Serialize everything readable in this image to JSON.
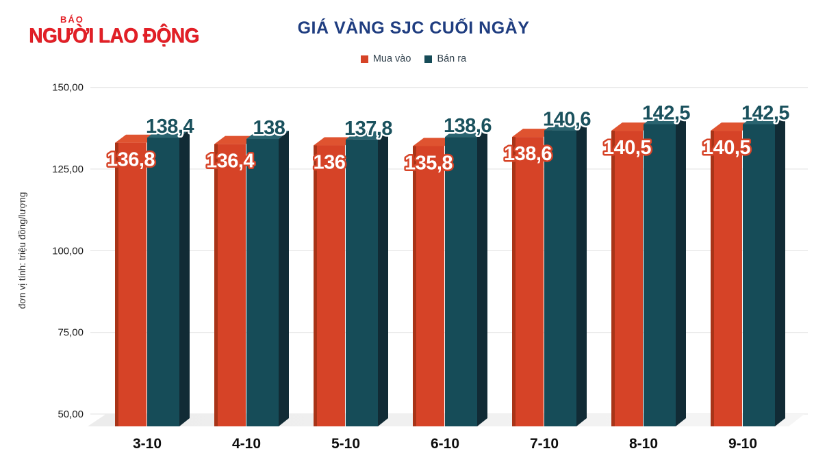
{
  "logo": {
    "top_text": "BÁO",
    "main_text": "NGƯỜI LAO ĐỘNG",
    "color": "#E31F26"
  },
  "header": {
    "title": "GIÁ VÀNG SJC CUỐI NGÀY",
    "title_color": "#1F3D80"
  },
  "legend": [
    {
      "label": "Mua vào",
      "color": "#D64327"
    },
    {
      "label": "Bán ra",
      "color": "#164C58"
    }
  ],
  "y_axis": {
    "title": "đơn vị tính: triệu đồng/lượng",
    "ticks": [
      "150,00",
      "125,00",
      "100,00",
      "75,00",
      "50,00"
    ],
    "tick_values": [
      150,
      125,
      100,
      75,
      50
    ]
  },
  "chart_data": {
    "type": "bar",
    "title": "GIÁ VÀNG SJC CUỐI NGÀY",
    "categories": [
      "3-10",
      "4-10",
      "5-10",
      "6-10",
      "7-10",
      "8-10",
      "9-10"
    ],
    "series": [
      {
        "name": "Mua vào",
        "color": "#D64327",
        "top_color": "#DF5330",
        "edge_color": "#A83418",
        "label_fill": "#FFFFFF",
        "label_stroke": "#D64327",
        "values": [
          136.8,
          136.4,
          136.0,
          135.8,
          138.6,
          140.5,
          140.5
        ],
        "labels": [
          "136,8",
          "136,4",
          "136",
          "135,8",
          "138,6",
          "140,5",
          "140,5"
        ]
      },
      {
        "name": "Bán ra",
        "color": "#164C58",
        "top_color": "#2A6470",
        "side_color": "#112B35",
        "label_fill": "#1A515D",
        "label_stroke": "#FFFFFF",
        "values": [
          138.4,
          138.0,
          137.8,
          138.6,
          140.6,
          142.5,
          142.5
        ],
        "labels": [
          "138,4",
          "138",
          "137,8",
          "138,6",
          "140,6",
          "142,5",
          "142,5"
        ]
      }
    ],
    "xlabel": "",
    "ylabel": "đơn vị tính: triệu đồng/lượng",
    "ylim": [
      50,
      150
    ],
    "grid": true,
    "grid_color": "#E6E6E6",
    "floor_color": "#EFEFEF",
    "legend_position": "top"
  }
}
